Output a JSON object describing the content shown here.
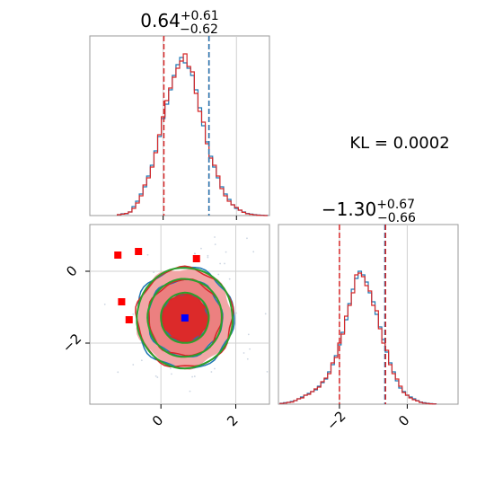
{
  "chart_data": [
    {
      "type": "histogram",
      "panel": "marginal-x1",
      "title": {
        "value": "0.64",
        "plus": "+0.61",
        "minus": "−0.62"
      },
      "x": [
        -1.2,
        -1.1,
        -1.0,
        -0.9,
        -0.8,
        -0.7,
        -0.6,
        -0.5,
        -0.4,
        -0.3,
        -0.2,
        -0.1,
        0.0,
        0.1,
        0.2,
        0.3,
        0.4,
        0.5,
        0.6,
        0.7,
        0.8,
        0.9,
        1.0,
        1.1,
        1.2,
        1.3,
        1.4,
        1.5,
        1.6,
        1.7,
        1.8,
        1.9,
        2.0,
        2.1,
        2.2,
        2.3,
        2.4,
        2.5,
        2.6,
        2.7,
        2.8
      ],
      "series": [
        {
          "color": "#1f77b4",
          "values": [
            0.005,
            0.01,
            0.01,
            0.02,
            0.05,
            0.08,
            0.12,
            0.16,
            0.22,
            0.28,
            0.36,
            0.44,
            0.54,
            0.62,
            0.7,
            0.78,
            0.84,
            0.88,
            0.85,
            0.82,
            0.78,
            0.7,
            0.6,
            0.5,
            0.41,
            0.33,
            0.27,
            0.21,
            0.16,
            0.12,
            0.09,
            0.06,
            0.04,
            0.03,
            0.02,
            0.012,
            0.008,
            0.005,
            0.003,
            0.002,
            0.001
          ]
        },
        {
          "color": "#d62728",
          "values": [
            0.005,
            0.008,
            0.012,
            0.02,
            0.04,
            0.07,
            0.11,
            0.17,
            0.21,
            0.27,
            0.35,
            0.45,
            0.55,
            0.64,
            0.71,
            0.77,
            0.82,
            0.86,
            0.9,
            0.83,
            0.8,
            0.68,
            0.58,
            0.52,
            0.4,
            0.32,
            0.28,
            0.22,
            0.15,
            0.11,
            0.08,
            0.06,
            0.045,
            0.03,
            0.018,
            0.01,
            0.007,
            0.004,
            0.002,
            0.001,
            0.0
          ]
        }
      ],
      "quantile_lines": [
        {
          "x": 0.02,
          "color": "#d62728"
        },
        {
          "x": 1.25,
          "color": "#d62728"
        },
        {
          "x": 1.25,
          "color": "#1f77b4"
        }
      ],
      "xlim": [
        -2.0,
        2.9
      ],
      "ylim": [
        0,
        1.0
      ],
      "xticks": [
        0,
        2
      ],
      "grid": true
    },
    {
      "type": "contour",
      "panel": "joint-x1-x2",
      "x_center": 0.64,
      "y_center": -1.3,
      "contours": [
        {
          "color": "#1f77b4",
          "sigma_x": 0.62,
          "sigma_y": 0.67,
          "levels": [
            1.0,
            1.6,
            2.1
          ]
        },
        {
          "color": "#d62728",
          "sigma_x": 0.61,
          "sigma_y": 0.66,
          "levels": [
            1.0,
            1.6,
            2.1
          ],
          "fill": "#e86464"
        },
        {
          "color": "#2ca02c",
          "sigma_x": 0.64,
          "sigma_y": 0.7,
          "levels": [
            1.0,
            1.55,
            2.0
          ]
        }
      ],
      "points": [
        {
          "x": -1.15,
          "y": 0.45,
          "color": "#ff0000",
          "marker": "square"
        },
        {
          "x": -0.6,
          "y": 0.55,
          "color": "#ff0000",
          "marker": "square"
        },
        {
          "x": -1.05,
          "y": -0.85,
          "color": "#ff0000",
          "marker": "square"
        },
        {
          "x": -0.85,
          "y": -1.35,
          "color": "#ff0000",
          "marker": "square"
        },
        {
          "x": 0.95,
          "y": 0.35,
          "color": "#ff0000",
          "marker": "square"
        },
        {
          "x": 0.64,
          "y": -1.3,
          "color": "#0000ff",
          "marker": "square"
        }
      ],
      "xlim": [
        -1.9,
        2.9
      ],
      "ylim": [
        -3.7,
        1.3
      ],
      "xticks": [
        0,
        2
      ],
      "yticks": [
        0,
        -2
      ],
      "grid": true
    },
    {
      "type": "histogram",
      "panel": "marginal-x2",
      "title": {
        "value": "−1.30",
        "plus": "+0.67",
        "minus": "−0.66"
      },
      "x": [
        -3.7,
        -3.6,
        -3.5,
        -3.4,
        -3.3,
        -3.2,
        -3.1,
        -3.0,
        -2.9,
        -2.8,
        -2.7,
        -2.6,
        -2.5,
        -2.4,
        -2.3,
        -2.2,
        -2.1,
        -2.0,
        -1.9,
        -1.8,
        -1.7,
        -1.6,
        -1.5,
        -1.4,
        -1.3,
        -1.2,
        -1.1,
        -1.0,
        -0.9,
        -0.8,
        -0.7,
        -0.6,
        -0.5,
        -0.4,
        -0.3,
        -0.2,
        -0.1,
        0.0,
        0.1,
        0.2,
        0.3,
        0.4,
        0.5,
        0.6,
        0.7,
        0.8
      ],
      "series": [
        {
          "color": "#1f77b4",
          "values": [
            0.005,
            0.008,
            0.01,
            0.015,
            0.02,
            0.03,
            0.04,
            0.05,
            0.06,
            0.07,
            0.08,
            0.1,
            0.12,
            0.14,
            0.18,
            0.22,
            0.27,
            0.33,
            0.4,
            0.47,
            0.56,
            0.64,
            0.7,
            0.74,
            0.72,
            0.68,
            0.62,
            0.57,
            0.5,
            0.43,
            0.36,
            0.29,
            0.23,
            0.18,
            0.13,
            0.09,
            0.07,
            0.05,
            0.04,
            0.03,
            0.02,
            0.012,
            0.008,
            0.005,
            0.003,
            0.002
          ]
        },
        {
          "color": "#d62728",
          "values": [
            0.004,
            0.006,
            0.01,
            0.012,
            0.02,
            0.03,
            0.035,
            0.05,
            0.055,
            0.07,
            0.085,
            0.095,
            0.125,
            0.145,
            0.17,
            0.23,
            0.26,
            0.34,
            0.39,
            0.49,
            0.55,
            0.62,
            0.72,
            0.73,
            0.71,
            0.66,
            0.63,
            0.55,
            0.52,
            0.42,
            0.34,
            0.3,
            0.22,
            0.17,
            0.14,
            0.1,
            0.065,
            0.05,
            0.035,
            0.025,
            0.018,
            0.01,
            0.006,
            0.004,
            0.002,
            0.001
          ]
        }
      ],
      "quantile_lines": [
        {
          "x": -2.0,
          "color": "#d62728"
        },
        {
          "x": -0.66,
          "color": "#1f77b4"
        },
        {
          "x": -0.64,
          "color": "#d62728"
        }
      ],
      "xlim": [
        -3.8,
        1.5
      ],
      "ylim": [
        0,
        1.0
      ],
      "xticks": [
        -2,
        0
      ],
      "grid": true
    }
  ],
  "annotation": "KL = 0.0002"
}
